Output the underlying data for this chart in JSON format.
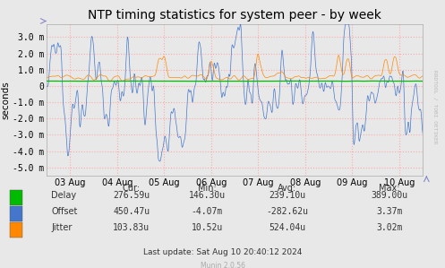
{
  "title": "NTP timing statistics for system peer - by week",
  "ylabel": "seconds",
  "background_color": "#e8e8e8",
  "plot_bg_color": "#e8e8e8",
  "grid_color": "#ffaaaa",
  "ylim": [
    -5.5,
    3.8
  ],
  "yticks": [
    -5.0,
    -4.0,
    -3.0,
    -2.0,
    -1.0,
    0.0,
    1.0,
    2.0,
    3.0
  ],
  "ytick_labels": [
    "-5.0 m",
    "-4.0 m",
    "-3.0 m",
    "-2.0 m",
    "-1.0 m",
    "0",
    "1.0 m",
    "2.0 m",
    "3.0 m"
  ],
  "x_labels": [
    "03 Aug",
    "04 Aug",
    "05 Aug",
    "06 Aug",
    "07 Aug",
    "08 Aug",
    "09 Aug",
    "10 Aug"
  ],
  "delay_color": "#00bb00",
  "offset_color": "#4477cc",
  "jitter_color": "#ff8800",
  "rrdtool_text": "RRDTOOL / TOBI OETIKER",
  "legend_items": [
    "Delay",
    "Offset",
    "Jitter"
  ],
  "table_headers": [
    "Cur:",
    "Min:",
    "Avg:",
    "Max:"
  ],
  "table_delay": [
    "276.59u",
    "146.30u",
    "239.10u",
    "389.00u"
  ],
  "table_offset": [
    "450.47u",
    "-4.07m",
    "-282.62u",
    "3.37m"
  ],
  "table_jitter": [
    "103.83u",
    "10.52u",
    "524.04u",
    "3.02m"
  ],
  "last_update": "Last update: Sat Aug 10 20:40:12 2024",
  "munin_text": "Munin 2.0.56",
  "title_fontsize": 10,
  "axis_fontsize": 7,
  "table_fontsize": 7,
  "num_points": 800
}
